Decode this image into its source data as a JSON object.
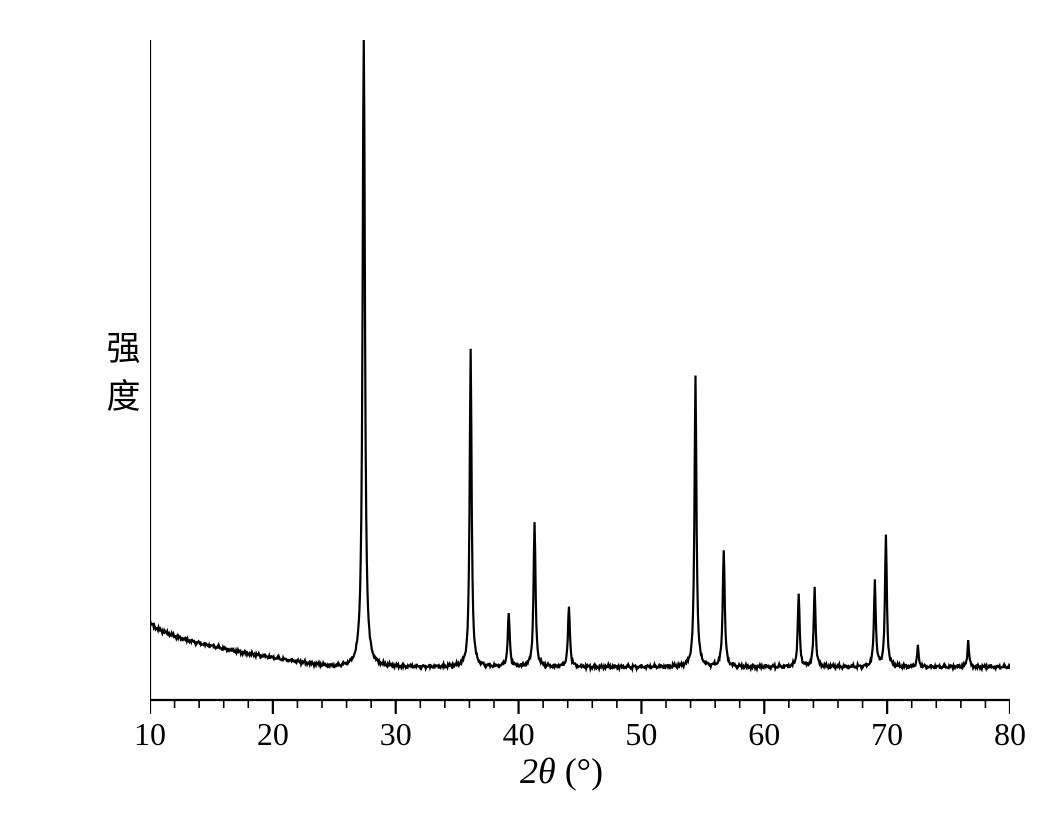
{
  "chart": {
    "type": "xrd-line",
    "xlabel": "2θ (°)",
    "ylabel": "强度",
    "xlim": [
      10,
      80
    ],
    "ylim": [
      0,
      100
    ],
    "x_ticks": [
      10,
      20,
      30,
      40,
      50,
      60,
      70,
      80
    ],
    "x_minor_step": 2,
    "tick_fontsize": 32,
    "label_fontsize": 36,
    "line_color": "#000000",
    "line_width": 2.2,
    "axis_color": "#000000",
    "axis_width": 2.2,
    "background_color": "#ffffff",
    "baseline_start_y": 12,
    "baseline_end_y": 5,
    "baseline_decay_x": 25,
    "peaks": [
      {
        "x": 27.4,
        "height": 98,
        "width": 0.35
      },
      {
        "x": 36.1,
        "height": 48,
        "width": 0.3
      },
      {
        "x": 39.2,
        "height": 8,
        "width": 0.3
      },
      {
        "x": 41.3,
        "height": 22,
        "width": 0.3
      },
      {
        "x": 44.1,
        "height": 9,
        "width": 0.3
      },
      {
        "x": 54.4,
        "height": 44,
        "width": 0.3
      },
      {
        "x": 56.7,
        "height": 18,
        "width": 0.3
      },
      {
        "x": 62.8,
        "height": 11,
        "width": 0.28
      },
      {
        "x": 64.1,
        "height": 12,
        "width": 0.28
      },
      {
        "x": 69.0,
        "height": 13,
        "width": 0.28
      },
      {
        "x": 69.9,
        "height": 20,
        "width": 0.28
      },
      {
        "x": 72.5,
        "height": 3,
        "width": 0.25
      },
      {
        "x": 76.6,
        "height": 4,
        "width": 0.25
      }
    ],
    "noise_amplitude": 0.4
  }
}
